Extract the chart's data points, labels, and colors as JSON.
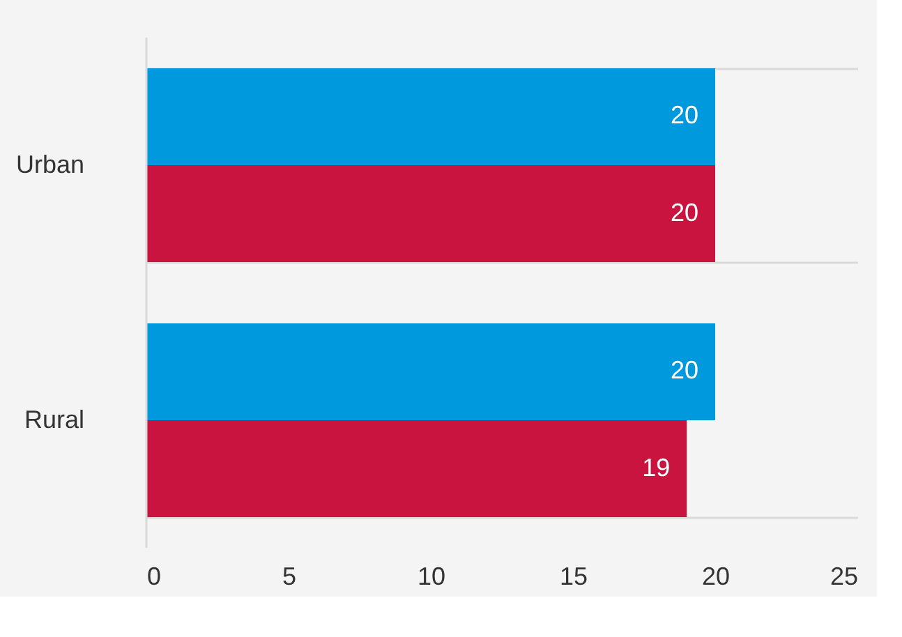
{
  "chart_data": {
    "type": "bar",
    "orientation": "horizontal",
    "categories": [
      "Urban",
      "Rural"
    ],
    "series": [
      {
        "color": "#0099dd",
        "values": [
          20,
          20
        ]
      },
      {
        "color": "#c8143f",
        "values": [
          20,
          19
        ]
      }
    ],
    "xlim": [
      0,
      25
    ],
    "xticks": [
      0,
      5,
      10,
      15,
      20,
      25
    ],
    "grid": "y",
    "data_labels": true
  }
}
